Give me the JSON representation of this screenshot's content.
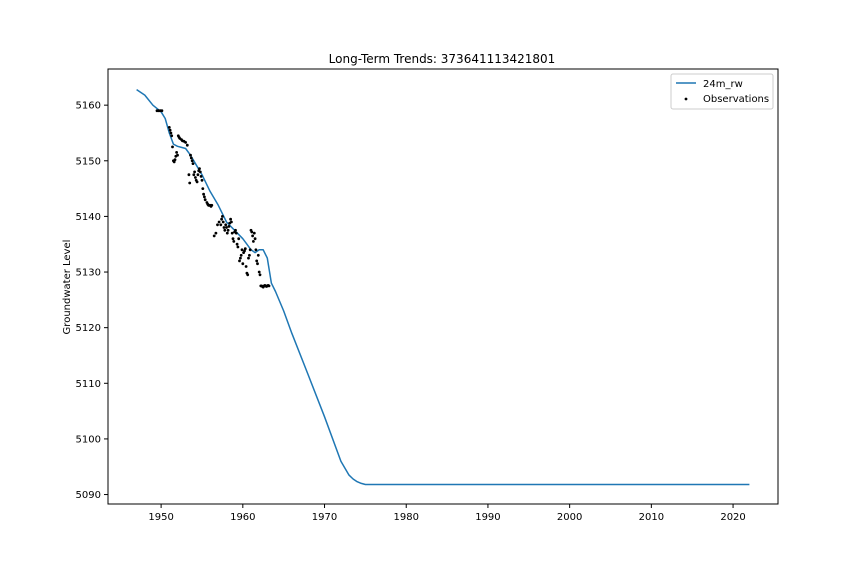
{
  "chart_data": {
    "type": "line",
    "title": "Long-Term Trends: 373641113421801",
    "xlabel": "",
    "ylabel": "Groundwater Level",
    "xlim": [
      1943.5,
      2025.5
    ],
    "ylim": [
      5088.3,
      5166.5
    ],
    "xticks": [
      1950,
      1960,
      1970,
      1980,
      1990,
      2000,
      2010,
      2020
    ],
    "yticks": [
      5090,
      5100,
      5110,
      5120,
      5130,
      5140,
      5150,
      5160
    ],
    "grid": false,
    "legend_position": "top-right",
    "colors": {
      "line": "#1f77b4",
      "points": "#000000"
    },
    "series": [
      {
        "name": "24m_rw",
        "kind": "line",
        "x": [
          1947.0,
          1948.0,
          1949.0,
          1950.0,
          1950.5,
          1951.0,
          1951.5,
          1952.0,
          1952.5,
          1953.0,
          1953.5,
          1954.0,
          1955.0,
          1956.0,
          1957.0,
          1958.0,
          1959.0,
          1960.0,
          1960.5,
          1961.0,
          1961.5,
          1962.0,
          1962.5,
          1963.0,
          1963.5,
          1964.0,
          1965.0,
          1966.0,
          1968.0,
          1970.0,
          1972.0,
          1973.0,
          1973.5,
          1974.0,
          1974.5,
          1975.0,
          1975.5,
          1976.0,
          1980.0,
          1990.0,
          2000.0,
          2010.0,
          2022.0
        ],
        "y": [
          5162.8,
          5161.8,
          5160.0,
          5158.8,
          5157.6,
          5155.0,
          5153.0,
          5152.6,
          5152.4,
          5152.2,
          5151.2,
          5150.0,
          5147.5,
          5144.5,
          5142.0,
          5139.0,
          5137.5,
          5136.0,
          5135.0,
          5134.0,
          5133.5,
          5134.0,
          5134.0,
          5132.5,
          5128.0,
          5126.5,
          5123.0,
          5119.0,
          5111.5,
          5104.0,
          5096.0,
          5093.5,
          5092.8,
          5092.3,
          5092.0,
          5091.8,
          5091.8,
          5091.8,
          5091.8,
          5091.8,
          5091.8,
          5091.8,
          5091.8
        ]
      },
      {
        "name": "Observations",
        "kind": "scatter",
        "x": [
          1949.5,
          1949.7,
          1949.9,
          1950.1,
          1951.0,
          1951.1,
          1951.2,
          1951.3,
          1951.4,
          1951.5,
          1951.6,
          1951.7,
          1951.8,
          1951.9,
          1952.0,
          1952.1,
          1952.2,
          1952.3,
          1952.5,
          1952.6,
          1952.8,
          1953.0,
          1953.2,
          1953.4,
          1953.5,
          1953.6,
          1953.7,
          1953.8,
          1953.9,
          1954.0,
          1954.1,
          1954.2,
          1954.3,
          1954.4,
          1954.5,
          1954.6,
          1954.7,
          1954.8,
          1954.9,
          1955.0,
          1955.1,
          1955.2,
          1955.3,
          1955.4,
          1955.6,
          1955.7,
          1955.8,
          1955.9,
          1956.0,
          1956.1,
          1956.2,
          1956.5,
          1956.7,
          1956.9,
          1957.1,
          1957.3,
          1957.4,
          1957.5,
          1957.6,
          1957.7,
          1957.8,
          1957.9,
          1958.0,
          1958.1,
          1958.2,
          1958.3,
          1958.4,
          1958.5,
          1958.6,
          1958.7,
          1958.8,
          1958.9,
          1959.0,
          1959.1,
          1959.2,
          1959.3,
          1959.4,
          1959.5,
          1959.6,
          1959.7,
          1959.8,
          1959.9,
          1960.0,
          1960.1,
          1960.2,
          1960.3,
          1960.4,
          1960.5,
          1960.6,
          1960.7,
          1960.8,
          1960.9,
          1961.0,
          1961.1,
          1961.2,
          1961.3,
          1961.4,
          1961.5,
          1961.6,
          1961.7,
          1961.8,
          1961.9,
          1962.0,
          1962.1,
          1962.2,
          1962.3,
          1962.4,
          1962.5,
          1962.6,
          1962.7,
          1962.8,
          1962.9,
          1963.0,
          1963.1,
          1963.2
        ],
        "y": [
          5159.0,
          5159.0,
          5159.0,
          5159.0,
          5156.0,
          5155.5,
          5155.0,
          5154.5,
          5152.5,
          5150.0,
          5149.8,
          5150.2,
          5150.8,
          5151.5,
          5151.0,
          5154.5,
          5154.2,
          5154.0,
          5153.8,
          5153.6,
          5153.5,
          5153.3,
          5152.8,
          5147.5,
          5146.0,
          5151.0,
          5150.5,
          5150.0,
          5149.5,
          5147.5,
          5148.0,
          5147.0,
          5146.5,
          5146.2,
          5147.5,
          5148.2,
          5148.6,
          5148.0,
          5147.2,
          5146.5,
          5145.0,
          5144.0,
          5143.5,
          5143.0,
          5142.5,
          5142.2,
          5142.0,
          5142.0,
          5142.0,
          5141.8,
          5142.0,
          5136.5,
          5137.0,
          5138.5,
          5139.0,
          5138.5,
          5139.5,
          5140.0,
          5139.0,
          5138.0,
          5137.5,
          5138.5,
          5138.0,
          5137.0,
          5137.5,
          5138.2,
          5138.8,
          5139.5,
          5139.0,
          5137.0,
          5136.0,
          5135.5,
          5137.2,
          5137.5,
          5137.0,
          5135.0,
          5134.5,
          5136.0,
          5132.0,
          5132.5,
          5133.0,
          5134.0,
          5131.5,
          5133.5,
          5133.8,
          5134.2,
          5131.0,
          5129.8,
          5129.5,
          5132.5,
          5133.0,
          5134.0,
          5137.5,
          5137.2,
          5136.5,
          5135.5,
          5137.0,
          5136.0,
          5134.0,
          5132.0,
          5131.5,
          5133.0,
          5130.0,
          5129.5,
          5127.5,
          5127.5,
          5127.4,
          5127.3,
          5127.5,
          5127.6,
          5127.5,
          5127.4,
          5127.5,
          5127.6,
          5127.5
        ]
      }
    ]
  }
}
